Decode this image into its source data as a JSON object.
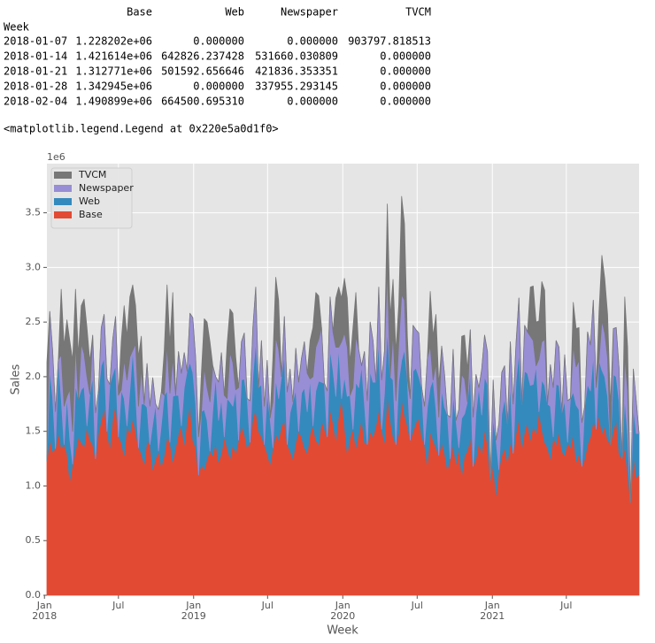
{
  "table": {
    "columns": [
      "Base",
      "Web",
      "Newspaper",
      "TVCM"
    ],
    "index_name": "Week",
    "rows": [
      [
        "2018-01-07",
        "1.228202e+06",
        "0.000000",
        "0.000000",
        "903797.818513"
      ],
      [
        "2018-01-14",
        "1.421614e+06",
        "642826.237428",
        "531660.030809",
        "0.000000"
      ],
      [
        "2018-01-21",
        "1.312771e+06",
        "501592.656646",
        "421836.353351",
        "0.000000"
      ],
      [
        "2018-01-28",
        "1.342945e+06",
        "0.000000",
        "337955.293145",
        "0.000000"
      ],
      [
        "2018-02-04",
        "1.490899e+06",
        "664500.695310",
        "0.000000",
        "0.000000"
      ]
    ]
  },
  "output_repr": "<matplotlib.legend.Legend at 0x220e5a0d1f0>",
  "chart_data": {
    "type": "area",
    "stacked": true,
    "xlabel": "Week",
    "ylabel": "Sales",
    "y_offset_label": "1e6",
    "grid": true,
    "legend": "upper left",
    "xlim": [
      "2018-01-07",
      "2021-12-26"
    ],
    "xticks": [
      {
        "value": "2018-01",
        "label": "Jan",
        "year": "2018"
      },
      {
        "value": "2018-07",
        "label": "Jul"
      },
      {
        "value": "2019-01",
        "label": "Jan",
        "year": "2019"
      },
      {
        "value": "2019-07",
        "label": "Jul"
      },
      {
        "value": "2020-01",
        "label": "Jan",
        "year": "2020"
      },
      {
        "value": "2020-07",
        "label": "Jul"
      },
      {
        "value": "2021-01",
        "label": "Jan",
        "year": "2021"
      },
      {
        "value": "2021-07",
        "label": "Jul"
      }
    ],
    "ylim": [
      0,
      3.95
    ],
    "yticks": [
      {
        "value": 0,
        "label": "0.0"
      },
      0.5,
      {
        "value": 1,
        "label": "1.0"
      },
      1.5,
      {
        "value": 2,
        "label": "2.0"
      },
      2.5,
      {
        "value": 3,
        "label": "3.0"
      },
      3.5
    ],
    "x": [
      "2018-01-07",
      "2018-01-14",
      "2018-01-21",
      "2018-01-28",
      "2018-02-04",
      "2018-02-11",
      "2018-02-18",
      "2018-02-25",
      "2018-03-04",
      "2018-03-11",
      "2018-03-18",
      "2018-03-25",
      "2018-04-01",
      "2018-04-08",
      "2018-04-15",
      "2018-04-22",
      "2018-04-29",
      "2018-05-06",
      "2018-05-13",
      "2018-05-20",
      "2018-05-27",
      "2018-06-03",
      "2018-06-10",
      "2018-06-17",
      "2018-06-24",
      "2018-07-01",
      "2018-07-08",
      "2018-07-15",
      "2018-07-22",
      "2018-07-29",
      "2018-08-05",
      "2018-08-12",
      "2018-08-19",
      "2018-08-26",
      "2018-09-02",
      "2018-09-09",
      "2018-09-16",
      "2018-09-23",
      "2018-09-30",
      "2018-10-07",
      "2018-10-14",
      "2018-10-21",
      "2018-10-28",
      "2018-11-04",
      "2018-11-11",
      "2018-11-18",
      "2018-11-25",
      "2018-12-02",
      "2018-12-09",
      "2018-12-16",
      "2018-12-23",
      "2018-12-30",
      "2019-01-06",
      "2019-01-13",
      "2019-01-20",
      "2019-01-27",
      "2019-02-03",
      "2019-02-10",
      "2019-02-17",
      "2019-02-24",
      "2019-03-03",
      "2019-03-10",
      "2019-03-17",
      "2019-03-24",
      "2019-03-31",
      "2019-04-07",
      "2019-04-14",
      "2019-04-21",
      "2019-04-28",
      "2019-05-05",
      "2019-05-12",
      "2019-05-19",
      "2019-05-26",
      "2019-06-02",
      "2019-06-09",
      "2019-06-16",
      "2019-06-23",
      "2019-06-30",
      "2019-07-07",
      "2019-07-14",
      "2019-07-21",
      "2019-07-28",
      "2019-08-04",
      "2019-08-11",
      "2019-08-18",
      "2019-08-25",
      "2019-09-01",
      "2019-09-08",
      "2019-09-15",
      "2019-09-22",
      "2019-09-29",
      "2019-10-06",
      "2019-10-13",
      "2019-10-20",
      "2019-10-27",
      "2019-11-03",
      "2019-11-10",
      "2019-11-17",
      "2019-11-24",
      "2019-12-01",
      "2019-12-08",
      "2019-12-15",
      "2019-12-22",
      "2019-12-29",
      "2020-01-05",
      "2020-01-12",
      "2020-01-19",
      "2020-01-26",
      "2020-02-02",
      "2020-02-09",
      "2020-02-16",
      "2020-02-23",
      "2020-03-01",
      "2020-03-08",
      "2020-03-15",
      "2020-03-22",
      "2020-03-29",
      "2020-04-05",
      "2020-04-12",
      "2020-04-19",
      "2020-04-26",
      "2020-05-03",
      "2020-05-10",
      "2020-05-17",
      "2020-05-24",
      "2020-05-31",
      "2020-06-07",
      "2020-06-14",
      "2020-06-21",
      "2020-06-28",
      "2020-07-05",
      "2020-07-12",
      "2020-07-19",
      "2020-07-26",
      "2020-08-02",
      "2020-08-09",
      "2020-08-16",
      "2020-08-23",
      "2020-08-30",
      "2020-09-06",
      "2020-09-13",
      "2020-09-20",
      "2020-09-27",
      "2020-10-04",
      "2020-10-11",
      "2020-10-18",
      "2020-10-25",
      "2020-11-01",
      "2020-11-08",
      "2020-11-15",
      "2020-11-22",
      "2020-11-29",
      "2020-12-06",
      "2020-12-13",
      "2020-12-20",
      "2020-12-27",
      "2021-01-03",
      "2021-01-10",
      "2021-01-17",
      "2021-01-24",
      "2021-01-31",
      "2021-02-07",
      "2021-02-14",
      "2021-02-21",
      "2021-02-28",
      "2021-03-07",
      "2021-03-14",
      "2021-03-21",
      "2021-03-28",
      "2021-04-04",
      "2021-04-11",
      "2021-04-18",
      "2021-04-25",
      "2021-05-02",
      "2021-05-09",
      "2021-05-16",
      "2021-05-23",
      "2021-05-30",
      "2021-06-06",
      "2021-06-13",
      "2021-06-20",
      "2021-06-27",
      "2021-07-04",
      "2021-07-11",
      "2021-07-18",
      "2021-07-25",
      "2021-08-01",
      "2021-08-08",
      "2021-08-15",
      "2021-08-22",
      "2021-08-29",
      "2021-09-05",
      "2021-09-12",
      "2021-09-19",
      "2021-09-26",
      "2021-10-03",
      "2021-10-10",
      "2021-10-17",
      "2021-10-24",
      "2021-10-31",
      "2021-11-07",
      "2021-11-14",
      "2021-11-21",
      "2021-11-28",
      "2021-12-05",
      "2021-12-12",
      "2021-12-19",
      "2021-12-26"
    ],
    "series": [
      {
        "name": "Base",
        "color": "#E24A33",
        "values": [
          1.228,
          1.422,
          1.313,
          1.343,
          1.491,
          1.35,
          1.38,
          1.3,
          1.05,
          1.2,
          1.32,
          1.45,
          1.4,
          1.36,
          1.55,
          1.42,
          1.38,
          1.25,
          1.48,
          1.6,
          1.72,
          1.5,
          1.35,
          1.62,
          1.75,
          1.45,
          1.4,
          1.28,
          1.55,
          1.48,
          1.62,
          1.5,
          1.35,
          1.3,
          1.2,
          1.42,
          1.38,
          1.15,
          1.25,
          1.32,
          1.18,
          1.28,
          1.45,
          1.4,
          1.22,
          1.35,
          1.48,
          1.55,
          1.38,
          1.6,
          1.75,
          1.42,
          1.35,
          1.1,
          1.2,
          1.15,
          1.25,
          1.32,
          1.28,
          1.4,
          1.22,
          1.3,
          1.45,
          1.35,
          1.25,
          1.38,
          1.3,
          1.42,
          1.55,
          1.48,
          1.35,
          1.4,
          1.62,
          1.7,
          1.5,
          1.45,
          1.38,
          1.3,
          1.2,
          1.35,
          1.48,
          1.42,
          1.55,
          1.6,
          1.38,
          1.32,
          1.25,
          1.4,
          1.5,
          1.45,
          1.35,
          1.3,
          1.48,
          1.55,
          1.42,
          1.38,
          1.6,
          1.52,
          1.45,
          1.7,
          1.58,
          1.42,
          1.65,
          1.8,
          1.55,
          1.3,
          1.45,
          1.52,
          1.35,
          1.48,
          1.62,
          1.4,
          1.38,
          1.5,
          1.45,
          1.55,
          1.7,
          1.52,
          1.4,
          1.85,
          1.6,
          1.45,
          1.38,
          1.48,
          1.8,
          1.65,
          1.55,
          1.42,
          1.5,
          1.58,
          1.62,
          1.45,
          1.38,
          1.2,
          1.5,
          1.42,
          1.35,
          1.28,
          1.4,
          1.3,
          1.15,
          1.25,
          1.38,
          1.2,
          1.35,
          1.1,
          1.28,
          1.32,
          1.45,
          1.18,
          1.25,
          1.4,
          1.3,
          1.52,
          1.38,
          1.05,
          1.2,
          0.92,
          1.15,
          1.28,
          1.35,
          1.22,
          1.4,
          1.3,
          1.48,
          1.62,
          1.35,
          1.5,
          1.58,
          1.42,
          1.55,
          1.48,
          1.68,
          1.52,
          1.4,
          1.35,
          1.25,
          1.45,
          1.38,
          1.5,
          1.32,
          1.28,
          1.4,
          1.35,
          1.48,
          1.22,
          1.3,
          1.18,
          1.25,
          1.38,
          1.45,
          1.6,
          1.52,
          1.65,
          1.48,
          1.55,
          1.42,
          1.38,
          1.5,
          1.62,
          1.3,
          1.25,
          1.35,
          1.12,
          0.85,
          1.3,
          1.08,
          1.1
        ]
      },
      {
        "name": "Web",
        "color": "#348ABD",
        "values": [
          0,
          0.643,
          0.502,
          0,
          0.665,
          0.45,
          0,
          0.52,
          0.38,
          0,
          0.6,
          0.35,
          0.48,
          0.55,
          0,
          0.42,
          0.62,
          0,
          0.38,
          0.5,
          0.45,
          0,
          0.58,
          0.4,
          0.35,
          0,
          0.48,
          0.52,
          0,
          0.4,
          0.62,
          0.35,
          0,
          0.45,
          0.55,
          0.3,
          0,
          0.42,
          0.5,
          0,
          0.38,
          0.55,
          0.42,
          0,
          0.6,
          0.48,
          0.35,
          0,
          0.52,
          0.45,
          0.38,
          0.62,
          0.4,
          0,
          0.48,
          0.55,
          0.35,
          0,
          0.42,
          0.6,
          0.38,
          0.5,
          0,
          0.45,
          0.52,
          0.35,
          0.58,
          0,
          0.42,
          0.5,
          0.45,
          0,
          0.38,
          0.62,
          0.4,
          0.48,
          0,
          0.55,
          0.42,
          0,
          0.5,
          0.38,
          0.45,
          0.6,
          0,
          0.35,
          0.52,
          0.48,
          0,
          0.4,
          0.55,
          0.38,
          0.5,
          0,
          0.45,
          0.58,
          0.35,
          0.42,
          0,
          0.55,
          0.48,
          0.4,
          0.62,
          0,
          0.45,
          0.52,
          0.38,
          0,
          0.6,
          0.42,
          0.48,
          0.35,
          0,
          0.55,
          0.5,
          0.4,
          0.62,
          0,
          0.45,
          0.58,
          0.4,
          0.52,
          0,
          0.48,
          0.35,
          0.6,
          0.42,
          0,
          0.55,
          0.5,
          0.38,
          0.45,
          0,
          0.52,
          0.4,
          0.55,
          0.35,
          0,
          0.48,
          0.42,
          0.5,
          0,
          0.45,
          0.4,
          0,
          0.52,
          0.38,
          0.45,
          0.6,
          0,
          0.42,
          0.5,
          0.35,
          0.48,
          0.55,
          0,
          0.42,
          0.5,
          0,
          0.38,
          0.45,
          0.35,
          0.52,
          0,
          0.48,
          0.6,
          0.4,
          0.55,
          0.45,
          0.5,
          0.38,
          0.62,
          0,
          0.45,
          0.52,
          0.4,
          0.48,
          0,
          0.55,
          0.42,
          0.35,
          0.5,
          0,
          0.45,
          0.38,
          0.52,
          0.4,
          0,
          0.48,
          0.55,
          0.42,
          0.6,
          0,
          0.5,
          0.58,
          0.45,
          0.4,
          0,
          0.52,
          0.38,
          0.48,
          0,
          0.45,
          0.35,
          0,
          0.42,
          0.4,
          0.38
        ]
      },
      {
        "name": "Newspaper",
        "color": "#988ED5",
        "values": [
          0,
          0.532,
          0.422,
          0.338,
          0,
          0.4,
          0.35,
          0,
          0.45,
          0.3,
          0.38,
          0,
          0.42,
          0.3,
          0.45,
          0,
          0.38,
          0.42,
          0,
          0.35,
          0.4,
          0.48,
          0,
          0.32,
          0.45,
          0.38,
          0,
          0.35,
          0.42,
          0.3,
          0,
          0.45,
          0.38,
          0.32,
          0,
          0.4,
          0.35,
          0.42,
          0,
          0.38,
          0.3,
          0,
          0.42,
          0.45,
          0.35,
          0,
          0.4,
          0.48,
          0.32,
          0,
          0.45,
          0.5,
          0.42,
          0.35,
          0,
          0.38,
          0.3,
          0.45,
          0.4,
          0,
          0.35,
          0.42,
          0.38,
          0,
          0.45,
          0.4,
          0,
          0.48,
          0.35,
          0.42,
          0,
          0.38,
          0.45,
          0.5,
          0,
          0.4,
          0.35,
          0.3,
          0,
          0.42,
          0.38,
          0.45,
          0,
          0.35,
          0.48,
          0.4,
          0,
          0.38,
          0.45,
          0.32,
          0.42,
          0.35,
          0,
          0.45,
          0.4,
          0.38,
          0.5,
          0,
          0.42,
          0.48,
          0.35,
          0.45,
          0,
          0.52,
          0.4,
          0.45,
          0,
          0.38,
          0.42,
          0.35,
          0,
          0.48,
          0.4,
          0.45,
          0.38,
          0,
          0.5,
          0.45,
          0.38,
          0.55,
          0,
          0.42,
          0.4,
          0.35,
          0.6,
          0.45,
          0,
          0.38,
          0.42,
          0.35,
          0.4,
          0,
          0.35,
          0.45,
          0.38,
          0,
          0.42,
          0.35,
          0.4,
          0.3,
          0,
          0.38,
          0.42,
          0,
          0.35,
          0.4,
          0.32,
          0,
          0.38,
          0.45,
          0.35,
          0,
          0.42,
          0.38,
          0.3,
          0,
          0.35,
          0,
          0.42,
          0.38,
          0.3,
          0,
          0.4,
          0.45,
          0.35,
          0.5,
          0,
          0.42,
          0.38,
          0.45,
          0.4,
          0,
          0.48,
          0.35,
          0.42,
          0,
          0.38,
          0.45,
          0.4,
          0.35,
          0,
          0.42,
          0.38,
          0,
          0.42,
          0.35,
          0.45,
          0.4,
          0,
          0.48,
          0.42,
          0.5,
          0.38,
          0,
          0.45,
          0.4,
          0.35,
          0,
          0.42,
          0.45,
          0.3,
          0,
          0.38,
          0.4,
          0,
          0.35,
          0.3,
          0
        ]
      },
      {
        "name": "TVCM",
        "color": "#777777",
        "values": [
          0.904,
          0,
          0,
          0,
          0,
          0.6,
          0.55,
          0.7,
          0.45,
          0.65,
          0.5,
          0.4,
          0.35,
          0.5,
          0.45,
          0.3,
          0,
          0,
          0,
          0,
          0,
          0,
          0,
          0,
          0,
          0,
          0.45,
          0.5,
          0.4,
          0.55,
          0.6,
          0.35,
          0.45,
          0.3,
          0,
          0,
          0,
          0,
          0,
          0,
          0,
          0.4,
          0.55,
          0.45,
          0.6,
          0,
          0,
          0,
          0,
          0,
          0,
          0,
          0,
          0,
          0.35,
          0.45,
          0.6,
          0.55,
          0,
          0,
          0,
          0,
          0,
          0.5,
          0.4,
          0.45,
          0.3,
          0,
          0,
          0,
          0,
          0,
          0,
          0,
          0,
          0,
          0,
          0,
          0,
          0.4,
          0.55,
          0.45,
          0,
          0,
          0,
          0,
          0,
          0,
          0,
          0,
          0,
          0,
          0.35,
          0.45,
          0.5,
          0.4,
          0,
          0,
          0,
          0,
          0,
          0.45,
          0.55,
          0.4,
          0.5,
          0.45,
          0.3,
          0.55,
          0.4,
          0,
          0,
          0,
          0,
          0,
          0,
          0,
          0,
          0,
          0,
          0.6,
          0.55,
          0.5,
          0.45,
          0.35,
          0.9,
          0.7,
          0.4,
          0,
          0,
          0,
          0,
          0,
          0,
          0,
          0.5,
          0.4,
          0.45,
          0.3,
          0,
          0,
          0,
          0,
          0,
          0,
          0,
          0.35,
          0.4,
          0.3,
          0,
          0,
          0,
          0,
          0,
          0,
          0,
          0,
          0,
          0,
          0,
          0,
          0,
          0,
          0,
          0,
          0,
          0,
          0,
          0,
          0,
          0.45,
          0.5,
          0.4,
          0.35,
          0.55,
          0.45,
          0,
          0,
          0,
          0,
          0,
          0,
          0,
          0,
          0,
          0.4,
          0.35,
          0.3,
          0,
          0,
          0,
          0,
          0,
          0,
          0.45,
          0.6,
          0.5,
          0.4,
          0.35,
          0,
          0,
          0,
          0,
          0.55,
          0.4,
          0,
          0,
          0,
          0
        ]
      }
    ]
  }
}
